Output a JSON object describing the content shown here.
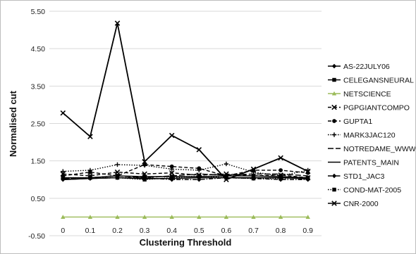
{
  "chart_data": {
    "type": "line",
    "title": "",
    "xlabel": "Clustering Threshold",
    "ylabel": "Normalised  cut",
    "categories": [
      "0",
      "0.1",
      "0.2",
      "0.3",
      "0.4",
      "0.5",
      "0.6",
      "0.7",
      "0.8",
      "0.9"
    ],
    "ylim": [
      -0.5,
      5.5
    ],
    "yticks": [
      "5.50",
      "4.50",
      "3.50",
      "2.50",
      "1.50",
      "0.50",
      "-0.50"
    ],
    "ytick_values": [
      5.5,
      4.5,
      3.5,
      2.5,
      1.5,
      0.5,
      -0.5
    ],
    "grid": "horizontal",
    "legend_position": "right",
    "series": [
      {
        "name": "AS-22JULY06",
        "marker": "diamond",
        "dash": "solid",
        "color": "#000000",
        "values": [
          1.0,
          1.03,
          1.05,
          1.02,
          1.03,
          1.05,
          1.05,
          1.05,
          1.05,
          1.02
        ]
      },
      {
        "name": "CELEGANSNEURAL",
        "marker": "square",
        "dash": "solid",
        "color": "#000000",
        "values": [
          1.05,
          1.05,
          1.1,
          1.08,
          1.08,
          1.08,
          1.1,
          1.1,
          1.08,
          1.05
        ]
      },
      {
        "name": "NETSCIENCE",
        "marker": "triangle",
        "dash": "solid",
        "color": "#9bbb59",
        "values": [
          0.0,
          0.0,
          0.0,
          0.0,
          0.0,
          0.0,
          0.0,
          0.0,
          0.0,
          0.0
        ]
      },
      {
        "name": "PGPGIANTCOMPO",
        "marker": "x",
        "dash": "dash",
        "color": "#000000",
        "values": [
          1.15,
          1.1,
          1.2,
          1.15,
          1.18,
          1.12,
          1.15,
          1.1,
          1.12,
          1.05
        ]
      },
      {
        "name": "GUPTA1",
        "marker": "circle",
        "dash": "dash",
        "color": "#000000",
        "values": [
          1.1,
          1.2,
          1.1,
          1.4,
          1.35,
          1.3,
          1.1,
          1.25,
          1.25,
          1.18
        ]
      },
      {
        "name": "MARK3JAC120",
        "marker": "plus",
        "dash": "dot",
        "color": "#000000",
        "values": [
          1.22,
          1.25,
          1.4,
          1.38,
          1.28,
          1.25,
          1.42,
          1.2,
          1.1,
          1.25
        ]
      },
      {
        "name": "NOTREDAME_WWW",
        "marker": "none",
        "dash": "longdash",
        "color": "#000000",
        "values": [
          1.02,
          1.05,
          1.1,
          1.05,
          1.1,
          1.15,
          1.12,
          1.15,
          1.15,
          1.1
        ]
      },
      {
        "name": "PATENTS_MAIN",
        "marker": "none",
        "dash": "solid",
        "color": "#000000",
        "values": [
          1.0,
          1.03,
          1.05,
          1.03,
          1.03,
          1.05,
          1.05,
          1.05,
          1.05,
          1.03
        ]
      },
      {
        "name": "STD1_JAC3",
        "marker": "diamond",
        "dash": "dashdot",
        "color": "#000000",
        "values": [
          1.03,
          1.03,
          1.05,
          1.05,
          1.0,
          1.0,
          1.05,
          1.03,
          1.0,
          1.0
        ]
      },
      {
        "name": "COND-MAT-2005",
        "marker": "square",
        "dash": "dot",
        "color": "#000000",
        "values": [
          1.05,
          1.05,
          1.05,
          1.0,
          1.05,
          1.1,
          1.05,
          1.03,
          1.03,
          1.05
        ]
      },
      {
        "name": "CNR-2000",
        "marker": "x",
        "dash": "solid",
        "color": "#000000",
        "values": [
          2.78,
          2.15,
          5.18,
          1.48,
          2.18,
          1.8,
          1.0,
          1.28,
          1.58,
          1.22
        ]
      }
    ]
  }
}
